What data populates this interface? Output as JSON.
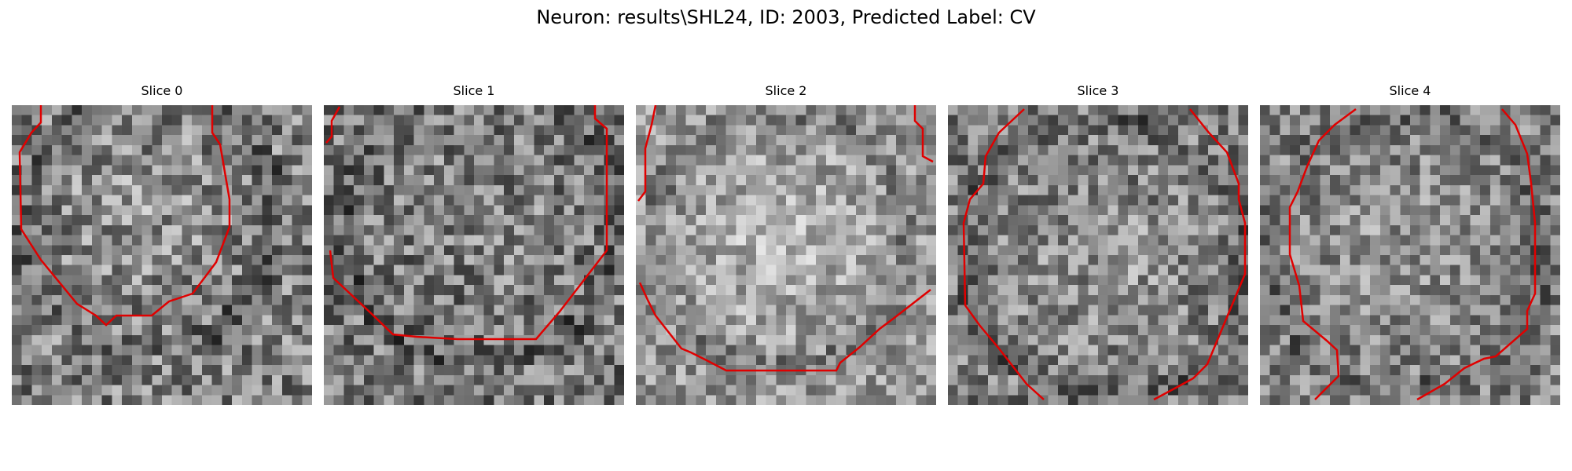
{
  "figure": {
    "title": "Neuron: results\\SHL24, ID: 2003, Predicted Label: CV",
    "contour_color": "#e00000"
  },
  "panels": [
    {
      "title": "Slice 0"
    },
    {
      "title": "Slice 1"
    },
    {
      "title": "Slice 2"
    },
    {
      "title": "Slice 3"
    },
    {
      "title": "Slice 4"
    }
  ]
}
